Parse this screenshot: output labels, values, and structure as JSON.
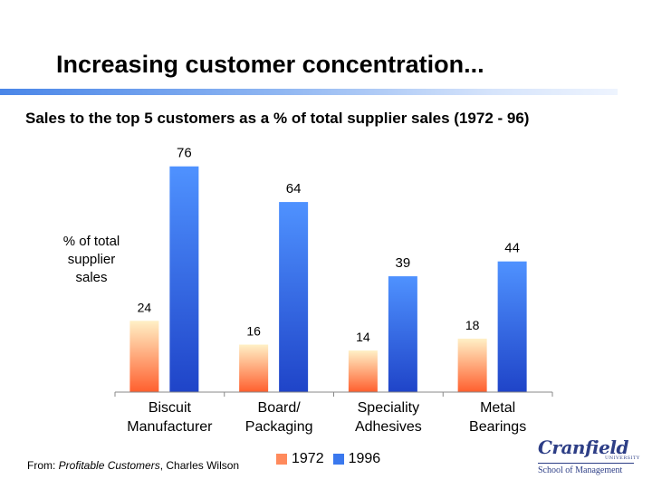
{
  "slide": {
    "title": "Increasing customer concentration...",
    "subtitle": "Sales to the top 5 customers as a % of total supplier sales (1972 - 96)",
    "source_prefix": "From: ",
    "source_title": "Profitable Customers",
    "source_author": ", Charles Wilson"
  },
  "logo": {
    "name": "Cranfield",
    "tag": "UNIVERSITY",
    "sub": "School of Management"
  },
  "colors": {
    "series_1972_top": "#fff0c6",
    "series_1972_bottom": "#ff5f2e",
    "series_1996_top": "#4f92ff",
    "series_1996_bottom": "#1f44c8",
    "legend_1972": "#ff8a5c",
    "legend_1996": "#3a78ee"
  },
  "chart_data": {
    "type": "bar",
    "title": "Sales to the top 5 customers as a % of total supplier sales (1972 - 96)",
    "ylabel": "% of total supplier sales",
    "ylabel_lines": [
      "% of total",
      "supplier",
      "sales"
    ],
    "categories": [
      "Biscuit Manufacturer",
      "Board/ Packaging",
      "Speciality Adhesives",
      "Metal Bearings"
    ],
    "category_lines": [
      [
        "Biscuit",
        "Manufacturer"
      ],
      [
        "Board/",
        "Packaging"
      ],
      [
        "Speciality",
        "Adhesives"
      ],
      [
        "Metal",
        "Bearings"
      ]
    ],
    "series": [
      {
        "name": "1972",
        "values": [
          24,
          16,
          14,
          18
        ]
      },
      {
        "name": "1996",
        "values": [
          76,
          64,
          39,
          44
        ]
      }
    ],
    "ylim": [
      0,
      80
    ],
    "grid": false,
    "legend": "bottom"
  }
}
